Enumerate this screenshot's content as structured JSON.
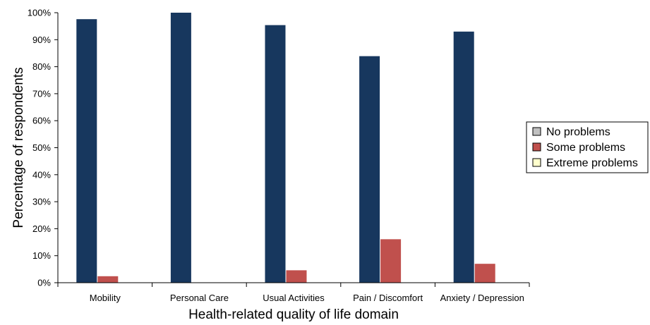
{
  "chart_data": {
    "type": "bar",
    "categories": [
      "Mobility",
      "Personal Care",
      "Usual Activities",
      "Pain / Discomfort",
      "Anxiety / Depression"
    ],
    "series": [
      {
        "name": "No problems",
        "values": [
          97.6,
          100,
          95.4,
          83.9,
          93.0
        ]
      },
      {
        "name": "Some problems",
        "values": [
          2.4,
          0,
          4.6,
          16.1,
          7.0
        ]
      },
      {
        "name": "Extreme problems",
        "values": [
          0,
          0,
          0,
          0,
          0
        ]
      }
    ],
    "bar_colors": [
      "#17375e",
      "#c0504d",
      "#ffffcc"
    ],
    "legend_swatch_colors": [
      "#c0c0c0",
      "#c0504d",
      "#ffffcc"
    ],
    "xlabel": "Health-related quality of life domain",
    "ylabel": "Percentage of respondents",
    "ylim": [
      0,
      100
    ],
    "y_ticks": [
      0,
      10,
      20,
      30,
      40,
      50,
      60,
      70,
      80,
      90,
      100
    ],
    "y_tick_labels": [
      "0%",
      "10%",
      "20%",
      "30%",
      "40%",
      "50%",
      "60%",
      "70%",
      "80%",
      "90%",
      "100%"
    ],
    "grid": false,
    "legend_position": "right"
  }
}
